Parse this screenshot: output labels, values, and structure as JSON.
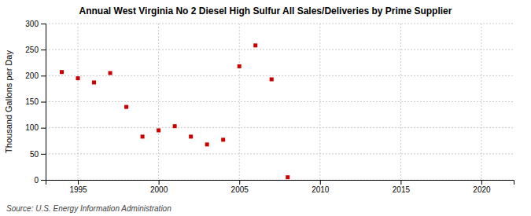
{
  "chart_data": {
    "type": "scatter",
    "title": "Annual West Virginia No 2 Diesel High Sulfur All Sales/Deliveries by Prime Supplier",
    "ylabel": "Thousand Gallons per Day",
    "source": "Source: U.S. Energy Information Administration",
    "x": [
      1994,
      1995,
      1996,
      1997,
      1998,
      1999,
      2000,
      2001,
      2002,
      2003,
      2004,
      2005,
      2006,
      2007,
      2008
    ],
    "values": [
      207,
      195,
      187,
      205,
      140,
      83,
      95,
      103,
      83,
      68,
      77,
      218,
      258,
      193,
      5
    ],
    "color": "#cc0000",
    "marker": "square",
    "xlim": [
      1993,
      2022
    ],
    "ylim": [
      0,
      300
    ],
    "xticks": [
      1995,
      2000,
      2005,
      2010,
      2015,
      2020
    ],
    "yticks": [
      0,
      50,
      100,
      150,
      200,
      250,
      300
    ],
    "grid": true
  }
}
